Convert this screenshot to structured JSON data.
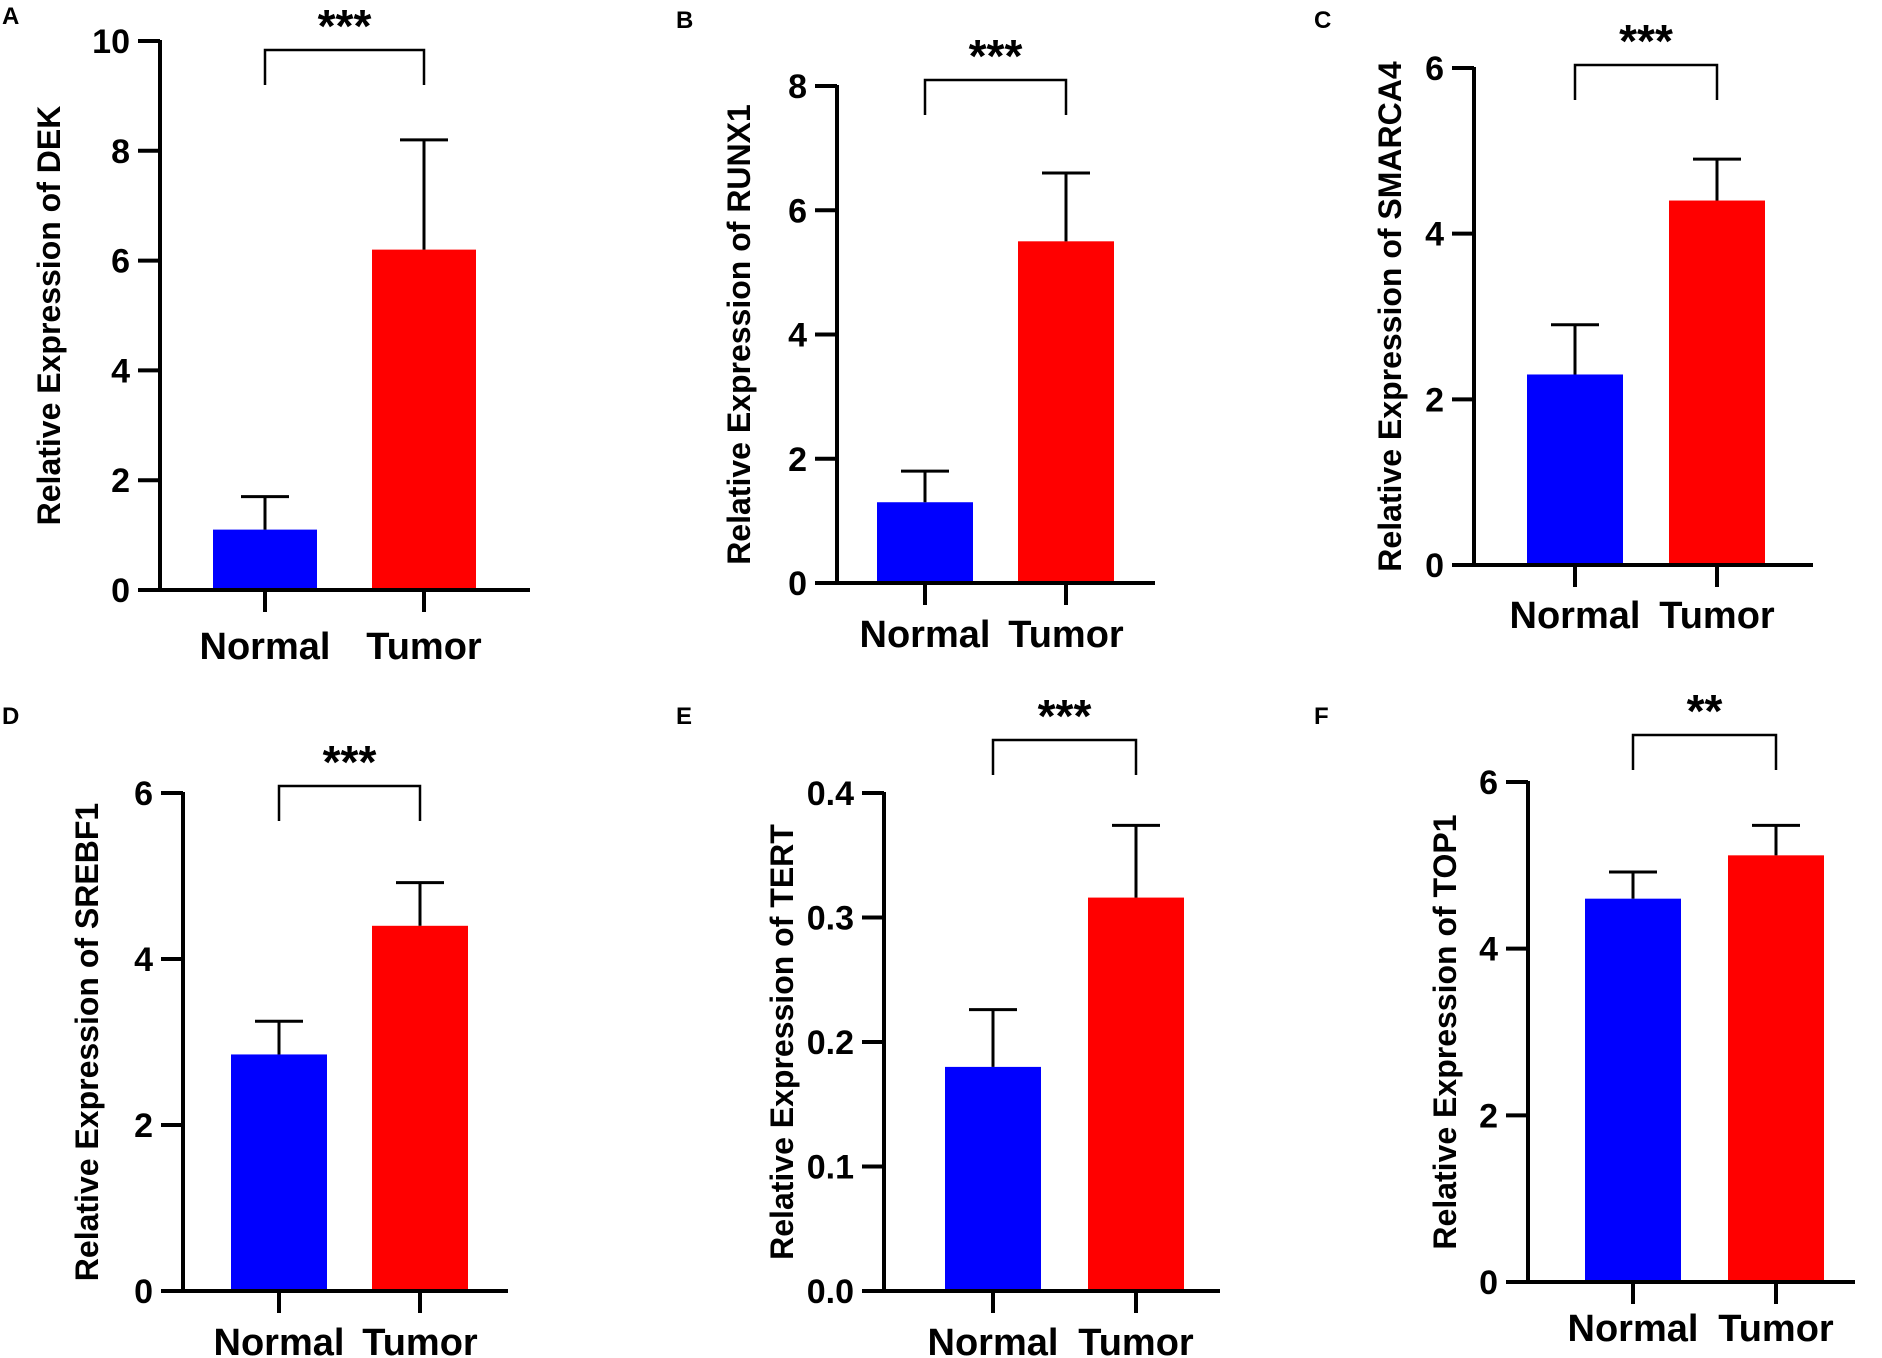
{
  "figure": {
    "colors": {
      "normal": "#0000ff",
      "tumor": "#ff0000",
      "axis": "#000000"
    }
  },
  "chart_data": [
    {
      "panel": "A",
      "type": "bar",
      "categories": [
        "Normal",
        "Tumor"
      ],
      "values": [
        1.1,
        6.2
      ],
      "errors": [
        0.6,
        2.0
      ],
      "ylabel": "Relative Expression of DEK",
      "ylim": [
        0,
        10
      ],
      "yticks": [
        0,
        2,
        4,
        6,
        8,
        10
      ],
      "tick_labels": [
        "0",
        "2",
        "4",
        "6",
        "8",
        "10"
      ],
      "significance": "***"
    },
    {
      "panel": "B",
      "type": "bar",
      "categories": [
        "Normal",
        "Tumor"
      ],
      "values": [
        1.3,
        5.5
      ],
      "errors": [
        0.5,
        1.1
      ],
      "ylabel": "Relative Expression of RUNX1",
      "ylim": [
        0,
        8
      ],
      "yticks": [
        0,
        2,
        4,
        6,
        8
      ],
      "tick_labels": [
        "0",
        "2",
        "4",
        "6",
        "8"
      ],
      "significance": "***"
    },
    {
      "panel": "C",
      "type": "bar",
      "categories": [
        "Normal",
        "Tumor"
      ],
      "values": [
        2.3,
        4.4
      ],
      "errors": [
        0.6,
        0.5
      ],
      "ylabel": "Relative Expression of SMARCA4",
      "ylim": [
        0,
        6
      ],
      "yticks": [
        0,
        2,
        4,
        6
      ],
      "tick_labels": [
        "0",
        "2",
        "4",
        "6"
      ],
      "significance": "***"
    },
    {
      "panel": "D",
      "type": "bar",
      "categories": [
        "Normal",
        "Tumor"
      ],
      "values": [
        2.85,
        4.4
      ],
      "errors": [
        0.4,
        0.52
      ],
      "ylabel": "Relative Expression of SREBF1",
      "ylim": [
        0,
        6
      ],
      "yticks": [
        0,
        2,
        4,
        6
      ],
      "tick_labels": [
        "0",
        "2",
        "4",
        "6"
      ],
      "significance": "***"
    },
    {
      "panel": "E",
      "type": "bar",
      "categories": [
        "Normal",
        "Tumor"
      ],
      "values": [
        0.18,
        0.316
      ],
      "errors": [
        0.046,
        0.058
      ],
      "ylabel": "Relative Expression of TERT",
      "ylim": [
        0,
        0.4
      ],
      "yticks": [
        0,
        0.1,
        0.2,
        0.3,
        0.4
      ],
      "tick_labels": [
        "0.0",
        "0.1",
        "0.2",
        "0.3",
        "0.4"
      ],
      "significance": "***"
    },
    {
      "panel": "F",
      "type": "bar",
      "categories": [
        "Normal",
        "Tumor"
      ],
      "values": [
        4.6,
        5.12
      ],
      "errors": [
        0.32,
        0.36
      ],
      "ylabel": "Relative Expression of TOP1",
      "ylim": [
        0,
        6
      ],
      "yticks": [
        0,
        2,
        4,
        6
      ],
      "tick_labels": [
        "0",
        "2",
        "4",
        "6"
      ],
      "significance": "**"
    }
  ]
}
